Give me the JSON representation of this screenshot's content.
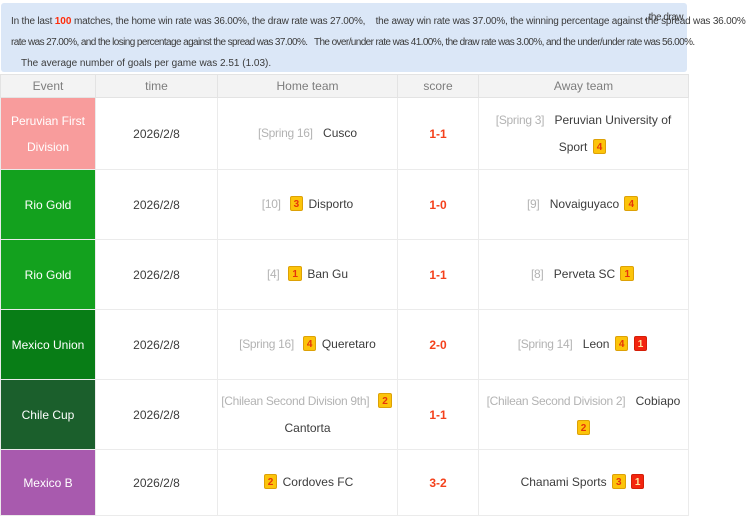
{
  "info": {
    "line1_pre": "In the last ",
    "line1_highlight": "100",
    "line1_post": " matches, the home win rate was 36.00%, the draw rate was 27.00%,    the away win rate was 37.00%, the winning percentage against the spread was 36.00%",
    "line1_overlap": ", the draw",
    "line2": "rate was 27.00%, and the losing percentage against the spread was 37.00%.   The over/under rate was 41.00%, the draw rate was 3.00%, and the under/under rate was 56.00%.",
    "line3": "The average number of goals per game was 2.51 (1.03)."
  },
  "colors": {
    "info_bg": "#dbe7f7",
    "header_bg": "#f3f3f3",
    "highlight_red": "#ff2d0a",
    "score_red": "#f4411c",
    "badge_yellow_bg": "#fcc40a",
    "badge_yellow_text": "#e5340b",
    "badge_red_bg": "#f3250f",
    "badge_red_text": "#ffe9a0"
  },
  "table": {
    "columns": [
      "Event",
      "time",
      "Home team",
      "score",
      "Away team"
    ],
    "rows": [
      {
        "event": "Peruvian First Division",
        "event_color": "#f89c9c",
        "time": "2026/2/8",
        "home": {
          "bracket": "[Spring 16]",
          "pre_badges": [],
          "name": "Cusco",
          "post_badges": []
        },
        "score": "1-1",
        "away": {
          "bracket": "[Spring 3]",
          "pre_badges": [],
          "name": "Peruvian University of Sport",
          "post_badges": [
            {
              "type": "yellow",
              "text": "4"
            }
          ]
        }
      },
      {
        "event": "Rio Gold",
        "event_color": "#13a11e",
        "time": "2026/2/8",
        "home": {
          "bracket": "[10]",
          "pre_badges": [
            {
              "type": "yellow",
              "text": "3"
            }
          ],
          "name": "Disporto",
          "post_badges": []
        },
        "score": "1-0",
        "away": {
          "bracket": "[9]",
          "pre_badges": [],
          "name": "Novaiguyaco",
          "post_badges": [
            {
              "type": "yellow",
              "text": "4"
            }
          ]
        }
      },
      {
        "event": "Rio Gold",
        "event_color": "#13a11e",
        "time": "2026/2/8",
        "home": {
          "bracket": "[4]",
          "pre_badges": [
            {
              "type": "yellow",
              "text": "1"
            }
          ],
          "name": "Ban Gu",
          "post_badges": []
        },
        "score": "1-1",
        "away": {
          "bracket": "[8]",
          "pre_badges": [],
          "name": "Perveta SC",
          "post_badges": [
            {
              "type": "yellow",
              "text": "1"
            }
          ]
        }
      },
      {
        "event": "Mexico Union",
        "event_color": "#087d16",
        "time": "2026/2/8",
        "home": {
          "bracket": "[Spring 16]",
          "pre_badges": [
            {
              "type": "yellow",
              "text": "4"
            }
          ],
          "name": "Queretaro",
          "post_badges": []
        },
        "score": "2-0",
        "away": {
          "bracket": "[Spring 14]",
          "pre_badges": [],
          "name": "Leon",
          "post_badges": [
            {
              "type": "yellow",
              "text": "4"
            },
            {
              "type": "red",
              "text": "1"
            }
          ]
        }
      },
      {
        "event": "Chile Cup",
        "event_color": "#1b5f2c",
        "time": "2026/2/8",
        "home": {
          "bracket": "[Chilean Second Division 9th]",
          "pre_badges": [
            {
              "type": "yellow",
              "text": "2"
            }
          ],
          "name": "Cantorta",
          "post_badges": []
        },
        "score": "1-1",
        "away": {
          "bracket": "[Chilean Second Division 2]",
          "pre_badges": [],
          "name": "Cobiapo",
          "post_badges": [
            {
              "type": "yellow",
              "text": "2"
            }
          ]
        }
      },
      {
        "event": "Mexico B",
        "event_color": "#a85aae",
        "time": "2026/2/8",
        "home": {
          "bracket": "",
          "pre_badges": [
            {
              "type": "yellow",
              "text": "2"
            }
          ],
          "name": "Cordoves FC",
          "post_badges": []
        },
        "score": "3-2",
        "away": {
          "bracket": "",
          "pre_badges": [],
          "name": "Chanami Sports",
          "post_badges": [
            {
              "type": "yellow",
              "text": "3"
            },
            {
              "type": "red",
              "text": "1"
            }
          ]
        }
      }
    ]
  }
}
